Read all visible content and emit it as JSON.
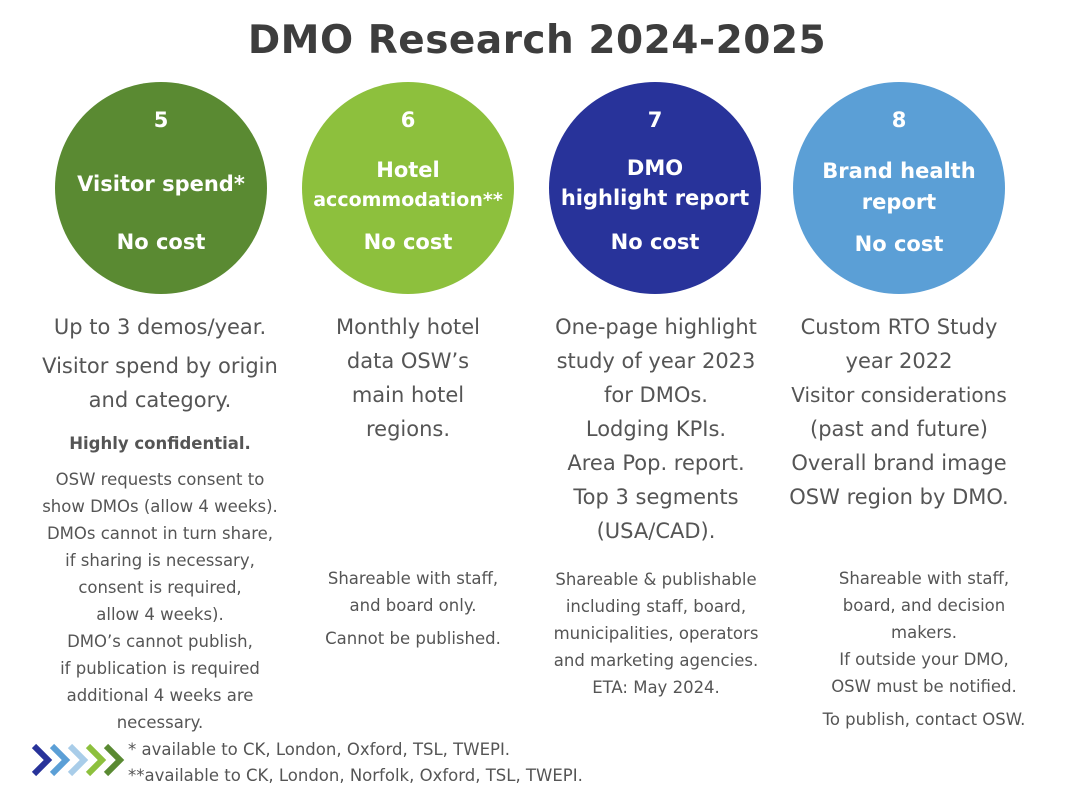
{
  "title": "DMO Research 2024-2025",
  "colors": {
    "c5": "#5a8a32",
    "c6": "#8dc03d",
    "c7": "#28339a",
    "c8": "#5b9fd6"
  },
  "columns": [
    {
      "number": "5",
      "name_lines": [
        "Visitor spend*"
      ],
      "cost": "No cost",
      "desc1_lines": [
        "Up to 3 demos/year."
      ],
      "desc2_lines": [
        "Visitor spend by origin",
        "and category."
      ],
      "bold_note": "Highly confidential.",
      "small_lines": [
        "OSW requests consent to",
        "show DMOs (allow 4 weeks).",
        "DMOs cannot in turn share,",
        "if sharing is necessary,",
        "consent is required,",
        "allow 4 weeks).",
        "DMO’s cannot publish,",
        "if publication is required",
        "additional 4 weeks are",
        "necessary."
      ]
    },
    {
      "number": "6",
      "name_lines": [
        "Hotel",
        "accommodation**"
      ],
      "cost": "No cost",
      "desc_lines": [
        "Monthly hotel",
        "data OSW’s",
        "main hotel",
        "regions."
      ],
      "small_lines": [
        "Shareable with staff,",
        "and board only."
      ],
      "small_extra": "Cannot be published."
    },
    {
      "number": "7",
      "name_lines": [
        "DMO",
        "highlight report"
      ],
      "cost": "No cost",
      "desc_lines": [
        "One-page highlight",
        "study of year 2023",
        "for DMOs.",
        "Lodging KPIs.",
        "Area Pop. report.",
        "Top 3 segments",
        "(USA/CAD)."
      ],
      "small_lines": [
        "Shareable & publishable",
        "including staff, board,",
        "municipalities, operators",
        "and marketing agencies.",
        "ETA: May 2024."
      ]
    },
    {
      "number": "8",
      "name_lines": [
        "Brand health",
        "report"
      ],
      "cost": "No cost",
      "desc_lines": [
        "Custom RTO Study",
        "year 2022",
        "Visitor considerations",
        "(past and future)",
        "Overall brand image",
        "OSW region by DMO."
      ],
      "small_lines": [
        "Shareable with staff,",
        "board, and decision",
        "makers.",
        "If outside your DMO,",
        "OSW must be notified."
      ],
      "small_extra": "To publish, contact OSW."
    }
  ],
  "footnotes": [
    "* available to CK, London, Oxford, TSL, TWEPI.",
    "**available to CK, London, Norfolk, Oxford, TSL, TWEPI."
  ],
  "chevron_colors": [
    "#28339a",
    "#5b9fd6",
    "#a9cde9",
    "#8dc03d",
    "#5a8a32"
  ]
}
